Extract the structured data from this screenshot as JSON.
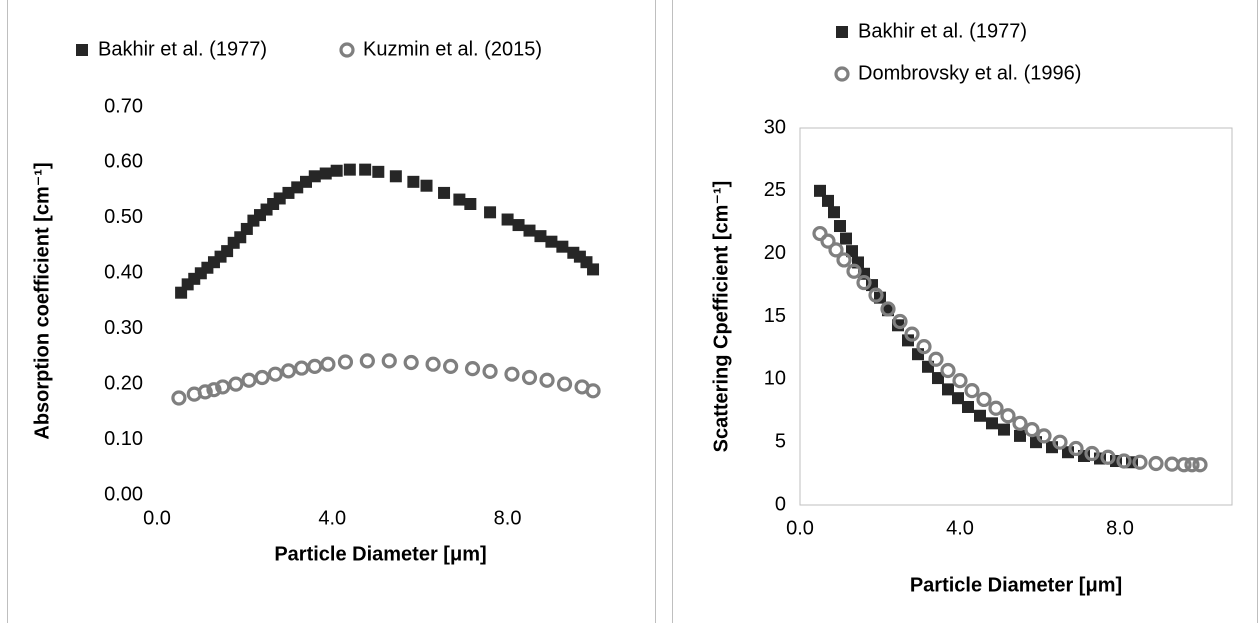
{
  "chart_data": [
    {
      "type": "scatter",
      "xlabel": "Particle Diameter [μm]",
      "ylabel": "Absorption coefficient [cm⁻¹]",
      "xlim": [
        0,
        10.2
      ],
      "ylim": [
        0,
        0.7
      ],
      "xticks": [
        {
          "value": 0,
          "label": "0.0"
        },
        {
          "value": 4,
          "label": "4.0"
        },
        {
          "value": 8,
          "label": "8.0"
        }
      ],
      "yticks": [
        {
          "value": 0,
          "label": "0.00"
        },
        {
          "value": 0.1,
          "label": "0.10"
        },
        {
          "value": 0.2,
          "label": "0.20"
        },
        {
          "value": 0.3,
          "label": "0.30"
        },
        {
          "value": 0.4,
          "label": "0.40"
        },
        {
          "value": 0.5,
          "label": "0.50"
        },
        {
          "value": 0.6,
          "label": "0.60"
        },
        {
          "value": 0.7,
          "label": "0.70"
        }
      ],
      "grid": false,
      "frame": false,
      "legend": "top",
      "series": [
        {
          "name": "Bakhir et al. (1977)",
          "color": "#262626",
          "marker": "square",
          "x": [
            0.55,
            0.7,
            0.85,
            1.0,
            1.15,
            1.3,
            1.45,
            1.6,
            1.75,
            1.9,
            2.05,
            2.2,
            2.35,
            2.5,
            2.65,
            2.8,
            3.0,
            3.2,
            3.4,
            3.6,
            3.85,
            4.1,
            4.4,
            4.75,
            5.05,
            5.45,
            5.85,
            6.15,
            6.55,
            6.9,
            7.15,
            7.6,
            8.0,
            8.25,
            8.5,
            8.75,
            9.0,
            9.25,
            9.5,
            9.65,
            9.8,
            9.95
          ],
          "values": [
            0.365,
            0.38,
            0.39,
            0.4,
            0.41,
            0.42,
            0.43,
            0.44,
            0.455,
            0.465,
            0.48,
            0.495,
            0.505,
            0.515,
            0.525,
            0.535,
            0.545,
            0.555,
            0.565,
            0.575,
            0.58,
            0.585,
            0.587,
            0.587,
            0.583,
            0.575,
            0.565,
            0.558,
            0.545,
            0.533,
            0.525,
            0.51,
            0.497,
            0.487,
            0.477,
            0.467,
            0.457,
            0.448,
            0.437,
            0.43,
            0.42,
            0.407
          ]
        },
        {
          "name": "Kuzmin et al. (2015)",
          "color": "#7f7f7f",
          "marker": "circle",
          "x": [
            0.5,
            0.85,
            1.1,
            1.3,
            1.5,
            1.8,
            2.1,
            2.4,
            2.7,
            3.0,
            3.3,
            3.6,
            3.9,
            4.3,
            4.8,
            5.3,
            5.8,
            6.3,
            6.7,
            7.2,
            7.6,
            8.1,
            8.5,
            8.9,
            9.3,
            9.7,
            9.95
          ],
          "values": [
            0.175,
            0.182,
            0.186,
            0.19,
            0.195,
            0.2,
            0.207,
            0.212,
            0.218,
            0.224,
            0.229,
            0.232,
            0.236,
            0.24,
            0.242,
            0.242,
            0.239,
            0.236,
            0.232,
            0.228,
            0.223,
            0.218,
            0.212,
            0.207,
            0.2,
            0.195,
            0.188
          ]
        }
      ]
    },
    {
      "type": "scatter",
      "xlabel": "Particle Diameter [μm]",
      "ylabel": "Scattering Cpefficient [cm⁻¹]",
      "xlim": [
        0,
        10.8
      ],
      "ylim": [
        0,
        30
      ],
      "xticks": [
        {
          "value": 0,
          "label": "0.0"
        },
        {
          "value": 4,
          "label": "4.0"
        },
        {
          "value": 8,
          "label": "8.0"
        }
      ],
      "yticks": [
        0,
        5,
        10,
        15,
        20,
        25,
        30
      ],
      "grid": false,
      "frame": true,
      "legend": "top",
      "series": [
        {
          "name": "Bakhir et al. (1977)",
          "color": "#262626",
          "marker": "square",
          "x": [
            0.5,
            0.7,
            0.85,
            1.0,
            1.15,
            1.3,
            1.45,
            1.6,
            1.8,
            2.0,
            2.2,
            2.45,
            2.7,
            2.95,
            3.2,
            3.45,
            3.7,
            3.95,
            4.2,
            4.5,
            4.8,
            5.1,
            5.5,
            5.9,
            6.3,
            6.7,
            7.1,
            7.5,
            7.9,
            8.3
          ],
          "values": [
            25,
            24.2,
            23.3,
            22.2,
            21.2,
            20.2,
            19.3,
            18.4,
            17.5,
            16.5,
            15.5,
            14.3,
            13.1,
            12.0,
            11.0,
            10.1,
            9.2,
            8.5,
            7.8,
            7.1,
            6.5,
            6.0,
            5.5,
            5.0,
            4.6,
            4.2,
            3.9,
            3.7,
            3.5,
            3.4
          ]
        },
        {
          "name": "Dombrovsky et al. (1996)",
          "color": "#7f7f7f",
          "marker": "circle",
          "x": [
            0.5,
            0.7,
            0.9,
            1.1,
            1.35,
            1.6,
            1.9,
            2.2,
            2.5,
            2.8,
            3.1,
            3.4,
            3.7,
            4.0,
            4.3,
            4.6,
            4.9,
            5.2,
            5.5,
            5.8,
            6.1,
            6.5,
            6.9,
            7.3,
            7.7,
            8.1,
            8.5,
            8.9,
            9.3,
            9.6,
            9.8,
            10.0
          ],
          "values": [
            21.6,
            21.0,
            20.3,
            19.5,
            18.6,
            17.7,
            16.7,
            15.6,
            14.6,
            13.6,
            12.6,
            11.6,
            10.7,
            9.9,
            9.1,
            8.4,
            7.7,
            7.1,
            6.5,
            6.0,
            5.5,
            5.0,
            4.5,
            4.1,
            3.8,
            3.5,
            3.4,
            3.3,
            3.25,
            3.2,
            3.2,
            3.2
          ]
        }
      ]
    }
  ]
}
